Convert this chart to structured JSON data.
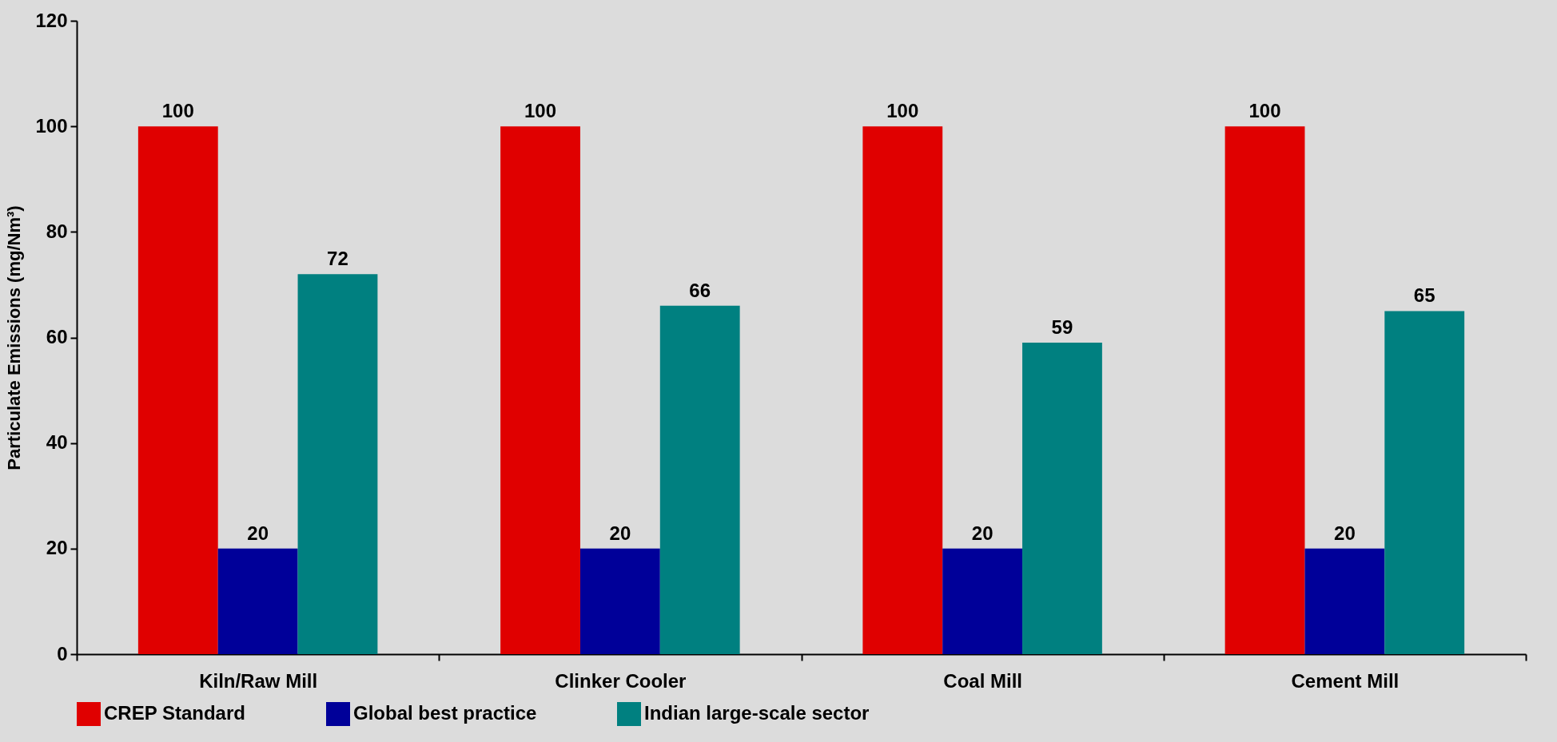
{
  "chart_data": {
    "type": "bar",
    "ylabel": "Particulate Emissions (mg/Nm³)",
    "categories": [
      "Kiln/Raw Mill",
      "Clinker Cooler",
      "Coal Mill",
      "Cement Mill"
    ],
    "series": [
      {
        "name": "CREP Standard",
        "color": "#e00000",
        "values": [
          100,
          100,
          100,
          100
        ]
      },
      {
        "name": "Global best practice",
        "color": "#000099",
        "values": [
          20,
          20,
          20,
          20
        ]
      },
      {
        "name": "Indian large-scale sector",
        "color": "#008080",
        "values": [
          72,
          66,
          59,
          65
        ]
      }
    ],
    "ylim": [
      0,
      120
    ],
    "yticks": [
      0,
      20,
      40,
      60,
      80,
      100,
      120
    ],
    "data_labels": true,
    "legend": "bottom"
  }
}
